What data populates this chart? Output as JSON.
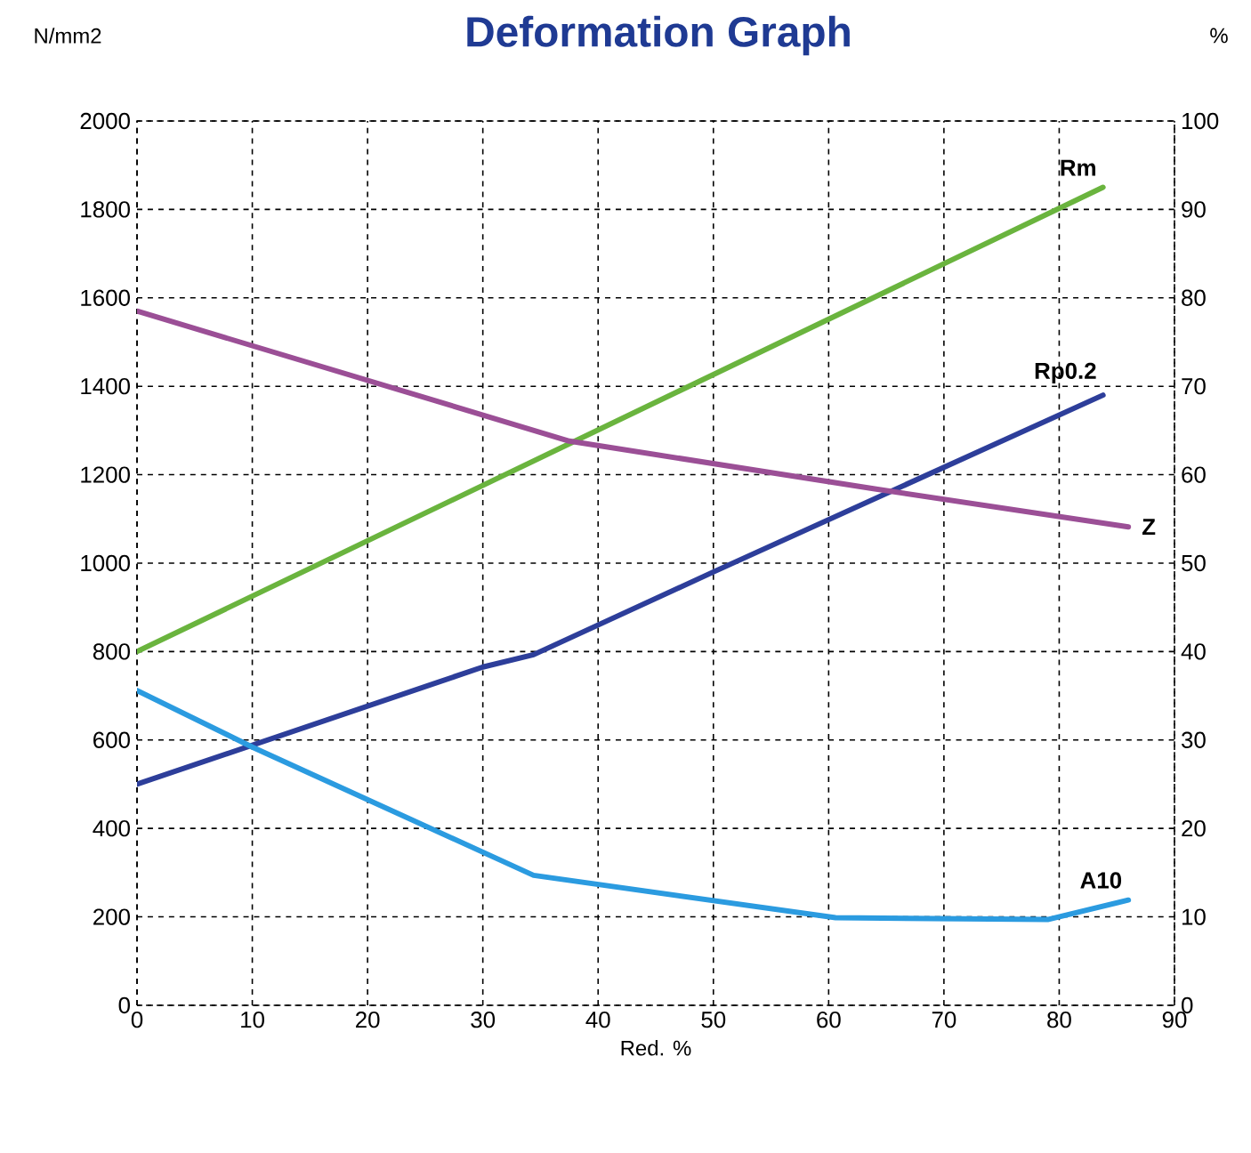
{
  "chart_data": {
    "type": "line",
    "title": "Deformation Graph",
    "xlabel": "Red. %",
    "ylabel": "N/mm2",
    "y2label": "%",
    "series": [
      {
        "name": "Rm",
        "color": "#6ab43e",
        "x": [
          0,
          83.8
        ],
        "values": [
          800,
          1850
        ]
      },
      {
        "name": "Rp0.2",
        "color": "#2d3e9a",
        "x": [
          0,
          30,
          34.4,
          50,
          83.8
        ],
        "values": [
          500,
          765,
          793,
          980,
          1380
        ]
      },
      {
        "name": "Z",
        "color": "#9b4f96",
        "axis": "y2",
        "x": [
          0,
          37.5,
          64,
          86
        ],
        "values": [
          78.5,
          63.8,
          58.4,
          54.1
        ]
      },
      {
        "name": "A10",
        "color": "#2b9be0",
        "axis": "y2",
        "x": [
          0,
          10,
          34.4,
          60.6,
          79,
          86
        ],
        "values": [
          35.6,
          29.2,
          14.7,
          9.9,
          9.7,
          11.9
        ]
      }
    ],
    "xlim": [
      0,
      90
    ],
    "xticks": [
      0,
      10,
      20,
      30,
      40,
      50,
      60,
      70,
      80,
      90
    ],
    "ylim": [
      0,
      2000
    ],
    "yticks": [
      0,
      200,
      400,
      600,
      800,
      1000,
      1200,
      1400,
      1600,
      1800,
      2000
    ],
    "y2lim": [
      0,
      100
    ],
    "y2ticks": [
      0,
      10,
      20,
      30,
      40,
      50,
      60,
      70,
      80,
      90,
      100
    ],
    "grid": true,
    "marker": "none",
    "line_style": "solid"
  }
}
